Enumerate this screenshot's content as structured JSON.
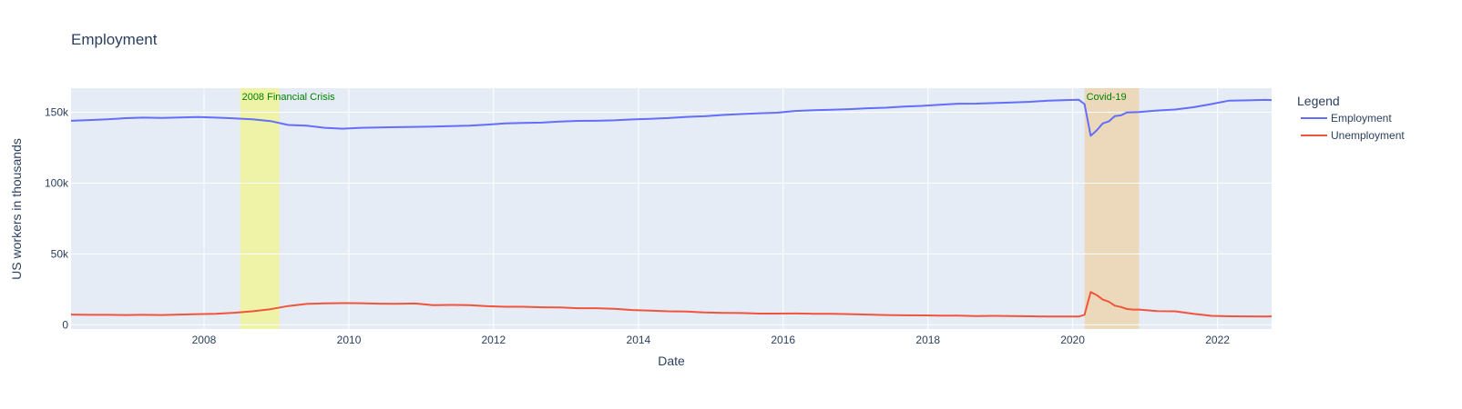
{
  "chart_data": {
    "type": "line",
    "title": "Employment",
    "xlabel": "Date",
    "ylabel": "US workers in thousands",
    "xlim": [
      "2006-03-01",
      "2022-10-01"
    ],
    "ylim": [
      -3000,
      167000
    ],
    "x_ticks": [
      {
        "value": "2008-01-01",
        "label": "2008"
      },
      {
        "value": "2010-01-01",
        "label": "2010"
      },
      {
        "value": "2012-01-01",
        "label": "2012"
      },
      {
        "value": "2014-01-01",
        "label": "2014"
      },
      {
        "value": "2016-01-01",
        "label": "2016"
      },
      {
        "value": "2018-01-01",
        "label": "2018"
      },
      {
        "value": "2020-01-01",
        "label": "2020"
      },
      {
        "value": "2022-01-01",
        "label": "2022"
      }
    ],
    "y_ticks": [
      {
        "value": 0,
        "label": "0"
      },
      {
        "value": 50000,
        "label": "50k"
      },
      {
        "value": 100000,
        "label": "100k"
      },
      {
        "value": 150000,
        "label": "150k"
      }
    ],
    "grid": true,
    "legend_title": "Legend",
    "legend_position": "right",
    "series": [
      {
        "name": "Employment",
        "color": "#636efa",
        "x": [
          "2006-03-01",
          "2006-06-01",
          "2006-09-01",
          "2006-12-01",
          "2007-03-01",
          "2007-06-01",
          "2007-09-01",
          "2007-12-01",
          "2008-03-01",
          "2008-06-01",
          "2008-09-01",
          "2008-12-01",
          "2009-03-01",
          "2009-06-01",
          "2009-09-01",
          "2009-12-01",
          "2010-03-01",
          "2010-06-01",
          "2010-09-01",
          "2010-12-01",
          "2011-03-01",
          "2011-06-01",
          "2011-09-01",
          "2011-12-01",
          "2012-03-01",
          "2012-06-01",
          "2012-09-01",
          "2012-12-01",
          "2013-03-01",
          "2013-06-01",
          "2013-09-01",
          "2013-12-01",
          "2014-03-01",
          "2014-06-01",
          "2014-09-01",
          "2014-12-01",
          "2015-03-01",
          "2015-06-01",
          "2015-09-01",
          "2015-12-01",
          "2016-03-01",
          "2016-06-01",
          "2016-09-01",
          "2016-12-01",
          "2017-03-01",
          "2017-06-01",
          "2017-09-01",
          "2017-12-01",
          "2018-03-01",
          "2018-06-01",
          "2018-09-01",
          "2018-12-01",
          "2019-03-01",
          "2019-06-01",
          "2019-09-01",
          "2019-12-01",
          "2020-02-01",
          "2020-03-01",
          "2020-04-01",
          "2020-05-01",
          "2020-06-01",
          "2020-07-01",
          "2020-08-01",
          "2020-09-01",
          "2020-10-01",
          "2020-11-01",
          "2020-12-01",
          "2021-03-01",
          "2021-06-01",
          "2021-09-01",
          "2021-12-01",
          "2022-03-01",
          "2022-06-01",
          "2022-09-01",
          "2022-10-01"
        ],
        "y": [
          144000,
          144500,
          145000,
          145800,
          146200,
          146000,
          146300,
          146600,
          146200,
          145700,
          145000,
          143800,
          141000,
          140500,
          139000,
          138400,
          139000,
          139300,
          139500,
          139700,
          139900,
          140200,
          140600,
          141300,
          142200,
          142400,
          142700,
          143400,
          143900,
          144000,
          144300,
          144900,
          145400,
          145900,
          146700,
          147200,
          148100,
          148700,
          149300,
          149700,
          150900,
          151400,
          151800,
          152200,
          152800,
          153200,
          154000,
          154500,
          155300,
          156000,
          156100,
          156500,
          156900,
          157400,
          158200,
          158600,
          158800,
          155800,
          133400,
          137200,
          142100,
          143500,
          147300,
          147800,
          149900,
          150000,
          150100,
          151200,
          151900,
          153500,
          155800,
          158200,
          158400,
          158700,
          158600
        ]
      },
      {
        "name": "Unemployment",
        "color": "#ef553b",
        "x": [
          "2006-03-01",
          "2006-06-01",
          "2006-09-01",
          "2006-12-01",
          "2007-03-01",
          "2007-06-01",
          "2007-09-01",
          "2007-12-01",
          "2008-03-01",
          "2008-06-01",
          "2008-09-01",
          "2008-12-01",
          "2009-03-01",
          "2009-06-01",
          "2009-09-01",
          "2009-12-01",
          "2010-03-01",
          "2010-06-01",
          "2010-09-01",
          "2010-12-01",
          "2011-03-01",
          "2011-06-01",
          "2011-09-01",
          "2011-12-01",
          "2012-03-01",
          "2012-06-01",
          "2012-09-01",
          "2012-12-01",
          "2013-03-01",
          "2013-06-01",
          "2013-09-01",
          "2013-12-01",
          "2014-03-01",
          "2014-06-01",
          "2014-09-01",
          "2014-12-01",
          "2015-03-01",
          "2015-06-01",
          "2015-09-01",
          "2015-12-01",
          "2016-03-01",
          "2016-06-01",
          "2016-09-01",
          "2016-12-01",
          "2017-03-01",
          "2017-06-01",
          "2017-09-01",
          "2017-12-01",
          "2018-03-01",
          "2018-06-01",
          "2018-09-01",
          "2018-12-01",
          "2019-03-01",
          "2019-06-01",
          "2019-09-01",
          "2019-12-01",
          "2020-02-01",
          "2020-03-01",
          "2020-04-01",
          "2020-05-01",
          "2020-06-01",
          "2020-07-01",
          "2020-08-01",
          "2020-09-01",
          "2020-10-01",
          "2020-11-01",
          "2020-12-01",
          "2021-03-01",
          "2021-06-01",
          "2021-09-01",
          "2021-12-01",
          "2022-03-01",
          "2022-06-01",
          "2022-09-01",
          "2022-10-01"
        ],
        "y": [
          7200,
          7000,
          7000,
          6900,
          7000,
          6900,
          7200,
          7500,
          7800,
          8500,
          9500,
          11000,
          13200,
          14700,
          15100,
          15300,
          15200,
          14900,
          14800,
          15000,
          13900,
          14000,
          13900,
          13100,
          12700,
          12700,
          12300,
          12200,
          11700,
          11700,
          11300,
          10400,
          10000,
          9500,
          9300,
          8700,
          8400,
          8300,
          7900,
          7900,
          8000,
          7800,
          7800,
          7500,
          7200,
          6900,
          6700,
          6600,
          6500,
          6500,
          6200,
          6300,
          6200,
          6000,
          5800,
          5800,
          5800,
          7100,
          23100,
          21000,
          17800,
          16300,
          13500,
          12500,
          11100,
          10700,
          10700,
          9700,
          9500,
          7700,
          6300,
          6000,
          5900,
          5800,
          5900
        ]
      }
    ],
    "annotations": [
      {
        "text": "2008 Financial Crisis",
        "x0": "2008-07-01",
        "x1": "2009-01-15",
        "fill": "#eef3a8"
      },
      {
        "text": "Covid-19",
        "x0": "2020-03-01",
        "x1": "2020-12-01",
        "fill": "#ecd9bb"
      }
    ]
  }
}
